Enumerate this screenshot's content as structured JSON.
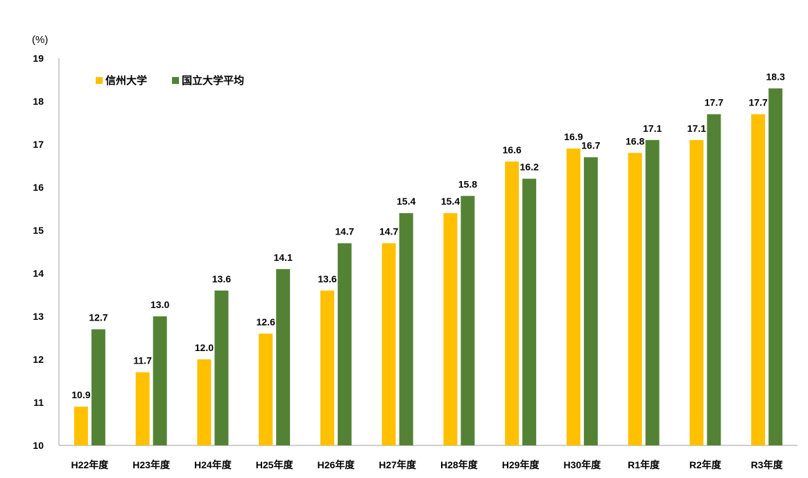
{
  "chart_data": {
    "type": "bar",
    "title": "",
    "xlabel": "",
    "ylabel": "(%)",
    "ylim": [
      10,
      19
    ],
    "yticks": [
      10,
      11,
      12,
      13,
      14,
      15,
      16,
      17,
      18,
      19
    ],
    "grid": false,
    "legend_position": "top-left",
    "categories": [
      "H22年度",
      "H23年度",
      "H24年度",
      "H25年度",
      "H26年度",
      "H27年度",
      "H28年度",
      "H29年度",
      "H30年度",
      "R1年度",
      "R2年度",
      "R3年度"
    ],
    "series": [
      {
        "name": "信州大学",
        "color": "#FFC000",
        "values": [
          10.9,
          11.7,
          12.0,
          12.6,
          13.6,
          14.7,
          15.4,
          16.6,
          16.9,
          16.8,
          17.1,
          17.7
        ],
        "labels": [
          "10.9",
          "11.7",
          "12.0",
          "12.6",
          "13.6",
          "14.7",
          "15.4",
          "16.6",
          "16.9",
          "16.8",
          "17.1",
          "17.7"
        ]
      },
      {
        "name": "国立大学平均",
        "color": "#548235",
        "values": [
          12.7,
          13.0,
          13.6,
          14.1,
          14.7,
          15.4,
          15.8,
          16.2,
          16.7,
          17.1,
          17.7,
          18.3
        ],
        "labels": [
          "12.7",
          "13.0",
          "13.6",
          "14.1",
          "14.7",
          "15.4",
          "15.8",
          "16.2",
          "16.7",
          "17.1",
          "17.7",
          "18.3"
        ]
      }
    ]
  }
}
